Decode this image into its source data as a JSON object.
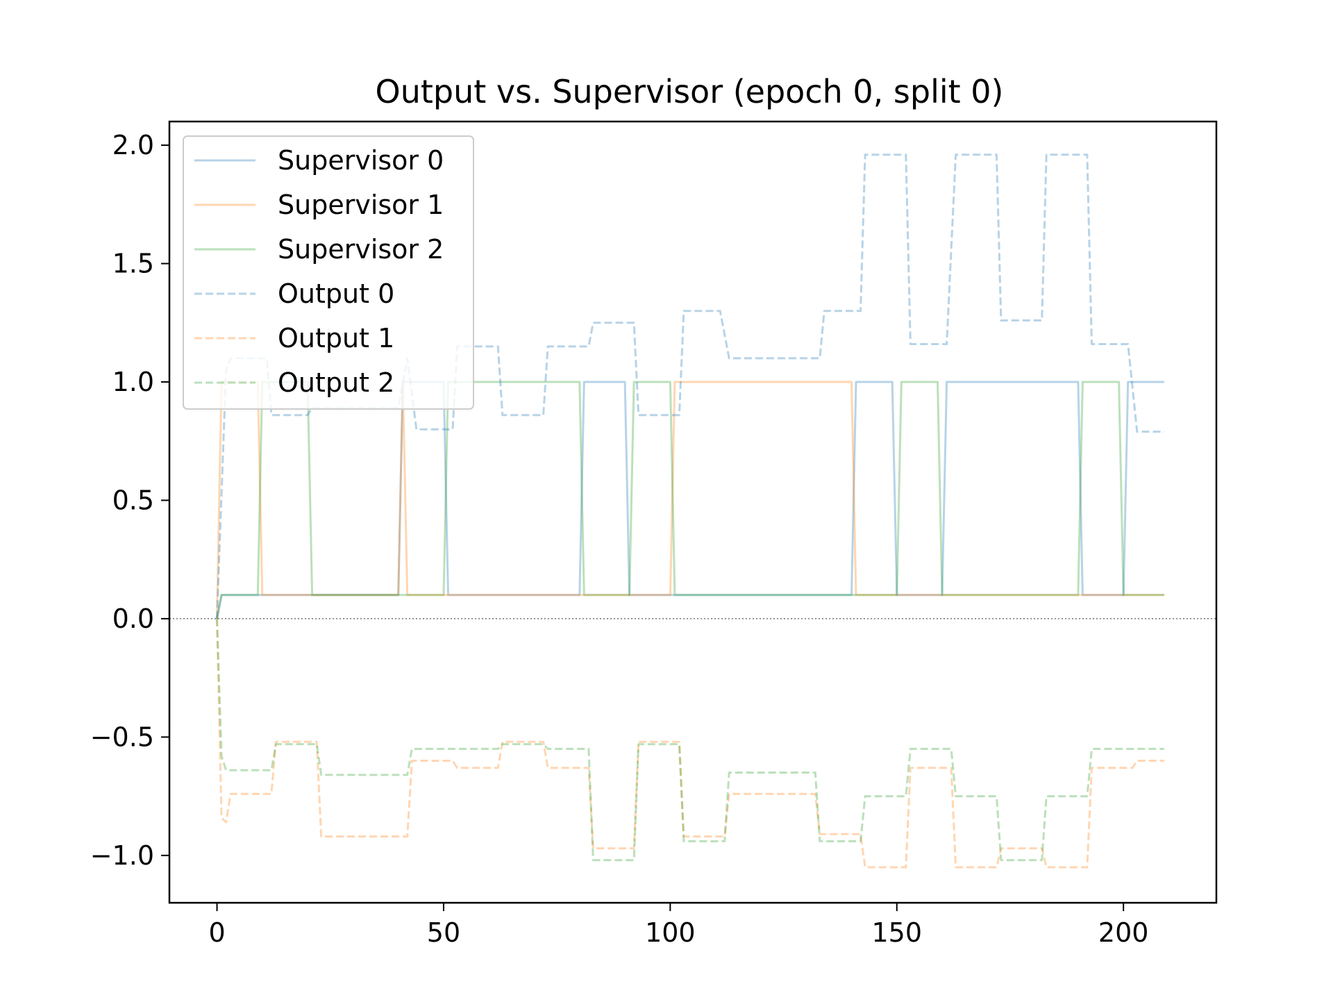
{
  "chart_data": {
    "type": "line",
    "title": "Output vs. Supervisor (epoch 0, split 0)",
    "xlabel": "",
    "ylabel": "",
    "xlim": [
      -10.5,
      220.5
    ],
    "ylim": [
      -1.2,
      2.1
    ],
    "xticks": [
      0,
      50,
      100,
      150,
      200
    ],
    "xtick_labels": [
      "0",
      "50",
      "100",
      "150",
      "200"
    ],
    "yticks": [
      -1.0,
      -0.5,
      0.0,
      0.5,
      1.0,
      1.5,
      2.0
    ],
    "ytick_labels": [
      "−1.0",
      "−0.5",
      "0.0",
      "0.5",
      "1.0",
      "1.5",
      "2.0"
    ],
    "grid": false,
    "zero_line": true,
    "legend_position": "upper-left",
    "series": [
      {
        "name": "Supervisor 0",
        "color": "#1f77b4",
        "style": "solid",
        "points": [
          [
            0,
            0
          ],
          [
            1,
            0.1
          ],
          [
            40,
            0.1
          ],
          [
            41,
            1
          ],
          [
            50,
            1
          ],
          [
            51,
            0.1
          ],
          [
            80,
            0.1
          ],
          [
            81,
            1
          ],
          [
            90,
            1
          ],
          [
            91,
            0.1
          ],
          [
            140,
            0.1
          ],
          [
            141,
            1
          ],
          [
            149,
            1
          ],
          [
            150,
            0.1
          ],
          [
            160,
            0.1
          ],
          [
            161,
            1
          ],
          [
            190,
            1
          ],
          [
            191,
            0.1
          ],
          [
            200,
            0.1
          ],
          [
            201,
            1
          ],
          [
            209,
            1
          ]
        ]
      },
      {
        "name": "Supervisor 1",
        "color": "#ff7f0e",
        "style": "solid",
        "points": [
          [
            0,
            0
          ],
          [
            1,
            1
          ],
          [
            9,
            1
          ],
          [
            10,
            0.1
          ],
          [
            40,
            0.1
          ],
          [
            41,
            1
          ],
          [
            42,
            0.1
          ],
          [
            100,
            0.1
          ],
          [
            101,
            1
          ],
          [
            140,
            1
          ],
          [
            141,
            0.1
          ],
          [
            209,
            0.1
          ]
        ]
      },
      {
        "name": "Supervisor 2",
        "color": "#2ca02c",
        "style": "solid",
        "points": [
          [
            0,
            0
          ],
          [
            1,
            0.1
          ],
          [
            9,
            0.1
          ],
          [
            10,
            1
          ],
          [
            20,
            1
          ],
          [
            21,
            0.1
          ],
          [
            50,
            0.1
          ],
          [
            51,
            1
          ],
          [
            80,
            1
          ],
          [
            81,
            0.1
          ],
          [
            91,
            0.1
          ],
          [
            92,
            1
          ],
          [
            100,
            1
          ],
          [
            101,
            0.1
          ],
          [
            150,
            0.1
          ],
          [
            151,
            1
          ],
          [
            159,
            1
          ],
          [
            160,
            0.1
          ],
          [
            190,
            0.1
          ],
          [
            191,
            1
          ],
          [
            199,
            1
          ],
          [
            200,
            0.1
          ],
          [
            209,
            0.1
          ]
        ]
      },
      {
        "name": "Output 0",
        "color": "#1f77b4",
        "style": "dashed",
        "points": [
          [
            0,
            0
          ],
          [
            2,
            1.05
          ],
          [
            3,
            1.1
          ],
          [
            11,
            1.1
          ],
          [
            12,
            0.86
          ],
          [
            20,
            0.86
          ],
          [
            21,
            0.89
          ],
          [
            40,
            0.89
          ],
          [
            42,
            1.1
          ],
          [
            44,
            0.8
          ],
          [
            52,
            0.8
          ],
          [
            53,
            1.15
          ],
          [
            62,
            1.15
          ],
          [
            63,
            0.86
          ],
          [
            72,
            0.86
          ],
          [
            73,
            1.15
          ],
          [
            82,
            1.15
          ],
          [
            83,
            1.25
          ],
          [
            92,
            1.25
          ],
          [
            93,
            0.86
          ],
          [
            102,
            0.86
          ],
          [
            103,
            1.3
          ],
          [
            111,
            1.3
          ],
          [
            113,
            1.1
          ],
          [
            133,
            1.1
          ],
          [
            134,
            1.3
          ],
          [
            142,
            1.3
          ],
          [
            143,
            1.96
          ],
          [
            152,
            1.96
          ],
          [
            153,
            1.16
          ],
          [
            161,
            1.16
          ],
          [
            163,
            1.96
          ],
          [
            172,
            1.96
          ],
          [
            173,
            1.26
          ],
          [
            182,
            1.26
          ],
          [
            183,
            1.96
          ],
          [
            192,
            1.96
          ],
          [
            193,
            1.16
          ],
          [
            201,
            1.16
          ],
          [
            203,
            0.79
          ],
          [
            209,
            0.79
          ]
        ]
      },
      {
        "name": "Output 1",
        "color": "#ff7f0e",
        "style": "dashed",
        "points": [
          [
            0,
            0
          ],
          [
            1,
            -0.84
          ],
          [
            2,
            -0.86
          ],
          [
            3,
            -0.74
          ],
          [
            12,
            -0.74
          ],
          [
            13,
            -0.52
          ],
          [
            22,
            -0.52
          ],
          [
            23,
            -0.92
          ],
          [
            42,
            -0.92
          ],
          [
            43,
            -0.6
          ],
          [
            52,
            -0.6
          ],
          [
            53,
            -0.63
          ],
          [
            62,
            -0.63
          ],
          [
            63,
            -0.52
          ],
          [
            72,
            -0.52
          ],
          [
            73,
            -0.63
          ],
          [
            82,
            -0.63
          ],
          [
            83,
            -0.97
          ],
          [
            92,
            -0.97
          ],
          [
            93,
            -0.52
          ],
          [
            102,
            -0.52
          ],
          [
            103,
            -0.92
          ],
          [
            112,
            -0.92
          ],
          [
            113,
            -0.74
          ],
          [
            132,
            -0.74
          ],
          [
            133,
            -0.91
          ],
          [
            142,
            -0.91
          ],
          [
            143,
            -1.05
          ],
          [
            152,
            -1.05
          ],
          [
            153,
            -0.63
          ],
          [
            162,
            -0.63
          ],
          [
            163,
            -1.05
          ],
          [
            172,
            -1.05
          ],
          [
            173,
            -0.97
          ],
          [
            182,
            -0.97
          ],
          [
            183,
            -1.05
          ],
          [
            192,
            -1.05
          ],
          [
            193,
            -0.63
          ],
          [
            202,
            -0.63
          ],
          [
            203,
            -0.6
          ],
          [
            209,
            -0.6
          ]
        ]
      },
      {
        "name": "Output 2",
        "color": "#2ca02c",
        "style": "dashed",
        "points": [
          [
            0,
            0
          ],
          [
            1,
            -0.58
          ],
          [
            2,
            -0.64
          ],
          [
            12,
            -0.64
          ],
          [
            13,
            -0.53
          ],
          [
            22,
            -0.53
          ],
          [
            23,
            -0.66
          ],
          [
            42,
            -0.66
          ],
          [
            43,
            -0.55
          ],
          [
            62,
            -0.55
          ],
          [
            63,
            -0.53
          ],
          [
            72,
            -0.53
          ],
          [
            73,
            -0.55
          ],
          [
            82,
            -0.55
          ],
          [
            83,
            -1.02
          ],
          [
            92,
            -1.02
          ],
          [
            93,
            -0.53
          ],
          [
            102,
            -0.53
          ],
          [
            103,
            -0.94
          ],
          [
            112,
            -0.94
          ],
          [
            113,
            -0.65
          ],
          [
            132,
            -0.65
          ],
          [
            133,
            -0.94
          ],
          [
            142,
            -0.94
          ],
          [
            143,
            -0.75
          ],
          [
            152,
            -0.75
          ],
          [
            153,
            -0.55
          ],
          [
            162,
            -0.55
          ],
          [
            163,
            -0.75
          ],
          [
            172,
            -0.75
          ],
          [
            173,
            -1.02
          ],
          [
            182,
            -1.02
          ],
          [
            183,
            -0.75
          ],
          [
            192,
            -0.75
          ],
          [
            193,
            -0.55
          ],
          [
            209,
            -0.55
          ]
        ]
      }
    ]
  }
}
